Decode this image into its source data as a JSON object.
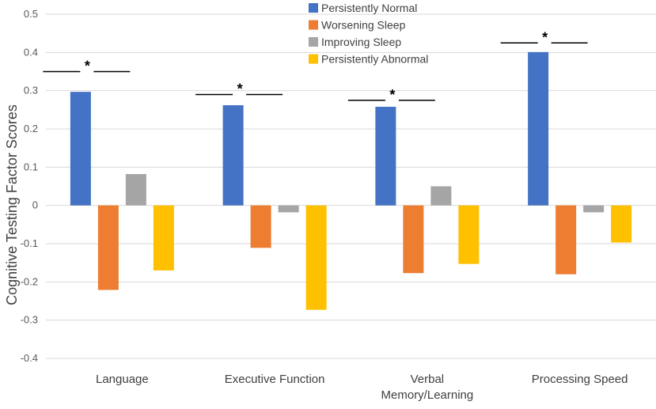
{
  "chart_data": {
    "type": "bar",
    "title": "",
    "xlabel": "",
    "ylabel": "Cognitive Testing Factor Scores",
    "ylim": [
      -0.4,
      0.5
    ],
    "yticks": [
      0.5,
      0.4,
      0.3,
      0.2,
      0.1,
      0,
      -0.1,
      -0.2,
      -0.3,
      -0.4
    ],
    "ytick_labels": [
      "0.5",
      "0.4",
      "0.3",
      "0.2",
      "0.1",
      "0",
      "-0.1",
      "-0.2",
      "-0.3",
      "-0.4"
    ],
    "grid": true,
    "legend_position": "top-center",
    "categories": [
      [
        "Language"
      ],
      [
        "Executive Function"
      ],
      [
        "Verbal",
        "Memory/Learning"
      ],
      [
        "Processing Speed"
      ]
    ],
    "series": [
      {
        "name": "Persistently Normal",
        "color": "#4472C4",
        "values": [
          0.297,
          0.262,
          0.258,
          0.401
        ]
      },
      {
        "name": "Worsening Sleep",
        "color": "#ED7D31",
        "values": [
          -0.221,
          -0.111,
          -0.177,
          -0.18
        ]
      },
      {
        "name": "Improving Sleep",
        "color": "#A5A5A5",
        "values": [
          0.082,
          -0.018,
          0.05,
          -0.018
        ]
      },
      {
        "name": "Persistently Abnormal",
        "color": "#FFC000",
        "values": [
          -0.17,
          -0.273,
          -0.153,
          -0.097
        ]
      }
    ],
    "annotations": [
      {
        "category_index": 0,
        "text": "*",
        "y": 0.35
      },
      {
        "category_index": 1,
        "text": "*",
        "y": 0.29
      },
      {
        "category_index": 2,
        "text": "*",
        "y": 0.275
      },
      {
        "category_index": 3,
        "text": "*",
        "y": 0.425
      }
    ]
  }
}
